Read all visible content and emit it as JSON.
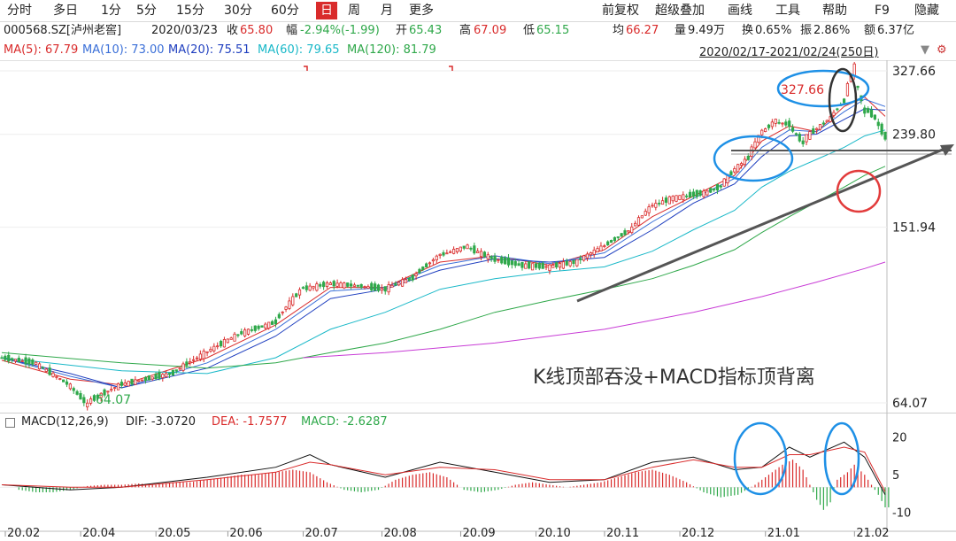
{
  "toolbar": {
    "periods": [
      "分时",
      "多日",
      "1分",
      "5分",
      "15分",
      "30分",
      "60分",
      "日",
      "周",
      "月",
      "更多"
    ],
    "active": "日",
    "right": [
      "前复权",
      "超级叠加",
      "画线",
      "工具",
      "帮助",
      "F9",
      "隐藏"
    ]
  },
  "info": {
    "code": "000568.SZ[泸州老窖]",
    "date": "2020/03/23",
    "close_label": "收",
    "close": "65.80",
    "change_label": "幅",
    "change": "-2.94%(-1.99)",
    "open_label": "开",
    "open": "65.43",
    "high_label": "高",
    "high": "67.09",
    "low_label": "低",
    "low": "65.15",
    "avg_label": "均",
    "avg": "66.27",
    "volume_label": "量",
    "volume": "9.49万",
    "turnover_label": "换",
    "turnover": "0.65%",
    "amplitude_label": "振",
    "amplitude": "2.86%",
    "amount_label": "额",
    "amount": "6.37亿",
    "range": "2020/02/17-2021/02/24(250日)"
  },
  "ma": [
    {
      "label": "MA(5): 67.79",
      "color": "#d92b2b"
    },
    {
      "label": "MA(10): 73.00",
      "color": "#3a6fd8"
    },
    {
      "label": "MA(20): 75.51",
      "color": "#1f3fbf"
    },
    {
      "label": "MA(60): 79.65",
      "color": "#19b8c8"
    },
    {
      "label": "MA(120): 81.79",
      "color": "#2fa84a"
    }
  ],
  "macd_info": {
    "name": "MACD(12,26,9)",
    "dif": "DIF: -3.0720",
    "dea": "DEA: -1.7577",
    "macd": "MACD: -2.6287"
  },
  "annotation": "K线顶部吞没+MACD指标顶背离",
  "chart_data": [
    {
      "type": "candlestick",
      "y_ticks": [
        327.66,
        239.8,
        151.94,
        64.07
      ],
      "ylim": [
        64.07,
        327.66
      ],
      "x_ticks": [
        "20.02",
        "20.04",
        "20.05",
        "20.06",
        "20.07",
        "20.08",
        "20.09",
        "20.10",
        "20.11",
        "20.12",
        "21.01",
        "21.02"
      ],
      "labels": {
        "high_label": "327.66",
        "low_label": "64.07"
      },
      "price_path": [
        [
          0,
          80
        ],
        [
          10,
          78
        ],
        [
          20,
          70
        ],
        [
          25,
          64
        ],
        [
          35,
          70
        ],
        [
          50,
          74
        ],
        [
          60,
          82
        ],
        [
          70,
          90
        ],
        [
          80,
          95
        ],
        [
          88,
          112
        ],
        [
          96,
          115
        ],
        [
          104,
          114
        ],
        [
          112,
          112
        ],
        [
          120,
          118
        ],
        [
          128,
          132
        ],
        [
          136,
          138
        ],
        [
          144,
          130
        ],
        [
          152,
          126
        ],
        [
          160,
          125
        ],
        [
          168,
          128
        ],
        [
          176,
          138
        ],
        [
          184,
          150
        ],
        [
          190,
          168
        ],
        [
          196,
          175
        ],
        [
          202,
          178
        ],
        [
          206,
          180
        ],
        [
          210,
          185
        ],
        [
          214,
          200
        ],
        [
          218,
          212
        ],
        [
          222,
          240
        ],
        [
          226,
          255
        ],
        [
          230,
          252
        ],
        [
          234,
          232
        ],
        [
          238,
          245
        ],
        [
          242,
          258
        ],
        [
          246,
          280
        ],
        [
          249,
          326
        ],
        [
          252,
          275
        ],
        [
          255,
          262
        ],
        [
          258,
          240
        ]
      ],
      "series": [
        {
          "name": "MA(5)",
          "color": "#d92b2b",
          "values": [
            [
              0,
              79
            ],
            [
              20,
              72
            ],
            [
              35,
              70
            ],
            [
              60,
              80
            ],
            [
              80,
              94
            ],
            [
              96,
              113
            ],
            [
              112,
              113
            ],
            [
              128,
              128
            ],
            [
              144,
              132
            ],
            [
              160,
              126
            ],
            [
              176,
              136
            ],
            [
              190,
              160
            ],
            [
              202,
              177
            ],
            [
              214,
              196
            ],
            [
              222,
              232
            ],
            [
              230,
              250
            ],
            [
              238,
              243
            ],
            [
              246,
              275
            ],
            [
              252,
              288
            ],
            [
              258,
              262
            ]
          ]
        },
        {
          "name": "MA(10)",
          "color": "#3a6fd8",
          "values": [
            [
              0,
              80
            ],
            [
              20,
              73
            ],
            [
              35,
              69
            ],
            [
              60,
              78
            ],
            [
              80,
              92
            ],
            [
              96,
              111
            ],
            [
              112,
              113
            ],
            [
              128,
              126
            ],
            [
              144,
              132
            ],
            [
              160,
              127
            ],
            [
              176,
              134
            ],
            [
              190,
              156
            ],
            [
              202,
              175
            ],
            [
              214,
              193
            ],
            [
              222,
              225
            ],
            [
              230,
              245
            ],
            [
              238,
              243
            ],
            [
              246,
              268
            ],
            [
              252,
              285
            ],
            [
              258,
              275
            ]
          ]
        },
        {
          "name": "MA(20)",
          "color": "#1f3fbf",
          "values": [
            [
              0,
              80
            ],
            [
              20,
              74
            ],
            [
              35,
              69
            ],
            [
              60,
              76
            ],
            [
              80,
              89
            ],
            [
              96,
              107
            ],
            [
              112,
              112
            ],
            [
              128,
              123
            ],
            [
              144,
              130
            ],
            [
              160,
              128
            ],
            [
              176,
              131
            ],
            [
              190,
              150
            ],
            [
              202,
              171
            ],
            [
              214,
              188
            ],
            [
              222,
              215
            ],
            [
              230,
              238
            ],
            [
              238,
              240
            ],
            [
              246,
              258
            ],
            [
              252,
              272
            ],
            [
              258,
              270
            ]
          ]
        },
        {
          "name": "MA(60)",
          "color": "#19b8c8",
          "values": [
            [
              0,
              80
            ],
            [
              35,
              75
            ],
            [
              60,
              74
            ],
            [
              80,
              80
            ],
            [
              96,
              92
            ],
            [
              112,
              100
            ],
            [
              128,
              112
            ],
            [
              144,
              118
            ],
            [
              160,
              122
            ],
            [
              176,
              125
            ],
            [
              190,
              135
            ],
            [
              202,
              150
            ],
            [
              214,
              165
            ],
            [
              222,
              185
            ],
            [
              230,
              200
            ],
            [
              238,
              212
            ],
            [
              246,
              225
            ],
            [
              252,
              238
            ],
            [
              258,
              245
            ]
          ]
        },
        {
          "name": "MA(120)",
          "color": "#2fa84a",
          "values": [
            [
              0,
              82
            ],
            [
              35,
              78
            ],
            [
              60,
              76
            ],
            [
              80,
              78
            ],
            [
              96,
              82
            ],
            [
              112,
              86
            ],
            [
              128,
              92
            ],
            [
              144,
              100
            ],
            [
              160,
              106
            ],
            [
              176,
              112
            ],
            [
              190,
              118
            ],
            [
              202,
              126
            ],
            [
              214,
              136
            ],
            [
              222,
              148
            ],
            [
              230,
              160
            ],
            [
              238,
              172
            ],
            [
              246,
              185
            ],
            [
              252,
              196
            ],
            [
              258,
              205
            ]
          ]
        },
        {
          "name": "MA(250)",
          "color": "#c83cd6",
          "values": [
            [
              88,
              80
            ],
            [
              112,
              82
            ],
            [
              144,
              86
            ],
            [
              176,
              92
            ],
            [
              202,
              100
            ],
            [
              222,
              108
            ],
            [
              238,
              116
            ],
            [
              252,
              124
            ],
            [
              258,
              128
            ]
          ]
        }
      ]
    },
    {
      "type": "macd",
      "y_ticks": [
        20,
        5,
        -10
      ],
      "ylim": [
        -14,
        22
      ],
      "dif": [
        [
          0,
          1
        ],
        [
          20,
          -1
        ],
        [
          35,
          0
        ],
        [
          60,
          4
        ],
        [
          80,
          8
        ],
        [
          90,
          13
        ],
        [
          96,
          9
        ],
        [
          112,
          4
        ],
        [
          128,
          10
        ],
        [
          144,
          6
        ],
        [
          160,
          2
        ],
        [
          176,
          3
        ],
        [
          190,
          10
        ],
        [
          202,
          12
        ],
        [
          214,
          7
        ],
        [
          222,
          8
        ],
        [
          230,
          16
        ],
        [
          236,
          12
        ],
        [
          246,
          18
        ],
        [
          252,
          12
        ],
        [
          258,
          -3
        ]
      ],
      "dea": [
        [
          0,
          1
        ],
        [
          20,
          0
        ],
        [
          35,
          0
        ],
        [
          60,
          3
        ],
        [
          80,
          6
        ],
        [
          90,
          10
        ],
        [
          96,
          9
        ],
        [
          112,
          5
        ],
        [
          128,
          8
        ],
        [
          144,
          7
        ],
        [
          160,
          3
        ],
        [
          176,
          3
        ],
        [
          190,
          8
        ],
        [
          202,
          11
        ],
        [
          214,
          8
        ],
        [
          222,
          8
        ],
        [
          230,
          13
        ],
        [
          236,
          13
        ],
        [
          246,
          16
        ],
        [
          252,
          14
        ],
        [
          258,
          -1.8
        ]
      ],
      "hist": [
        [
          5,
          -1
        ],
        [
          10,
          -2
        ],
        [
          15,
          -2
        ],
        [
          20,
          -1
        ],
        [
          25,
          0.5
        ],
        [
          30,
          1
        ],
        [
          35,
          1
        ],
        [
          40,
          1.5
        ],
        [
          45,
          1
        ],
        [
          50,
          2
        ],
        [
          55,
          2
        ],
        [
          60,
          3
        ],
        [
          65,
          4
        ],
        [
          70,
          5
        ],
        [
          75,
          5
        ],
        [
          80,
          6
        ],
        [
          85,
          7
        ],
        [
          90,
          6
        ],
        [
          95,
          2
        ],
        [
          100,
          -1
        ],
        [
          105,
          -2
        ],
        [
          110,
          -1
        ],
        [
          115,
          3
        ],
        [
          120,
          5
        ],
        [
          125,
          6
        ],
        [
          130,
          4
        ],
        [
          135,
          -1
        ],
        [
          140,
          -2
        ],
        [
          145,
          -1
        ],
        [
          150,
          1
        ],
        [
          155,
          2
        ],
        [
          160,
          1
        ],
        [
          165,
          0
        ],
        [
          170,
          1
        ],
        [
          175,
          2
        ],
        [
          180,
          4
        ],
        [
          185,
          6
        ],
        [
          190,
          7
        ],
        [
          195,
          5
        ],
        [
          200,
          2
        ],
        [
          205,
          -2
        ],
        [
          210,
          -4
        ],
        [
          215,
          -3
        ],
        [
          220,
          1
        ],
        [
          225,
          6
        ],
        [
          228,
          9
        ],
        [
          231,
          11
        ],
        [
          234,
          7
        ],
        [
          238,
          -5
        ],
        [
          240,
          -9
        ],
        [
          242,
          -6
        ],
        [
          244,
          3
        ],
        [
          247,
          6
        ],
        [
          249,
          9
        ],
        [
          252,
          5
        ],
        [
          256,
          -3
        ],
        [
          258,
          -8
        ]
      ]
    }
  ]
}
